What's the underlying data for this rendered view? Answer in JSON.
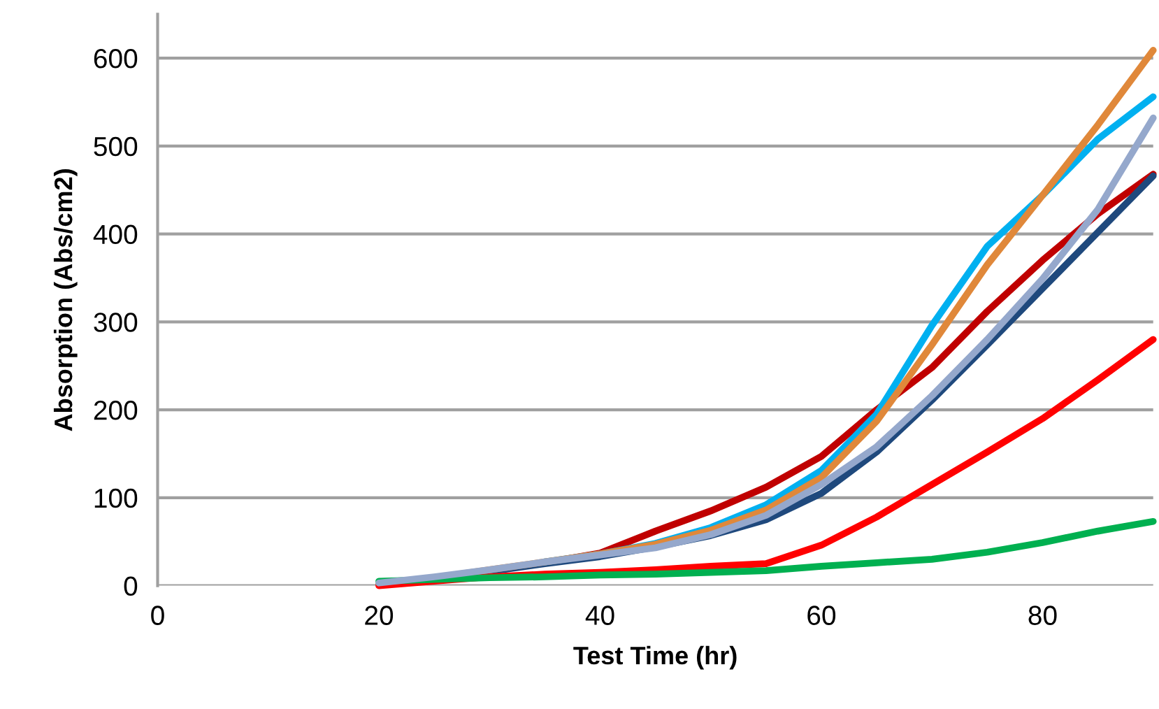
{
  "chart_data": {
    "type": "line",
    "xlabel": "Test Time (hr)",
    "ylabel": "Absorption (Abs/cm2)",
    "x": [
      20,
      25,
      30,
      35,
      40,
      45,
      50,
      55,
      60,
      65,
      70,
      75,
      80,
      85,
      90
    ],
    "series": [
      {
        "color": "#c00000",
        "values": [
          2,
          8,
          17,
          26,
          37,
          62,
          85,
          112,
          147,
          200,
          248,
          312,
          370,
          423,
          468
        ]
      },
      {
        "color": "#1f497d",
        "values": [
          2,
          8,
          16,
          25,
          33,
          44,
          57,
          75,
          105,
          152,
          211,
          274,
          338,
          402,
          466
        ]
      },
      {
        "color": "#00b0f0",
        "values": [
          null,
          null,
          null,
          27,
          36,
          48,
          66,
          92,
          131,
          195,
          296,
          386,
          444,
          508,
          556
        ]
      },
      {
        "color": "#e0883a",
        "values": [
          2,
          9,
          18,
          27,
          36,
          47,
          63,
          86,
          123,
          187,
          274,
          365,
          444,
          524,
          609
        ]
      },
      {
        "color": "#ff0000",
        "values": [
          0,
          5,
          10,
          13,
          15,
          18,
          22,
          25,
          46,
          78,
          115,
          152,
          190,
          234,
          280
        ]
      },
      {
        "color": "#00b050",
        "values": [
          5,
          7,
          9,
          10,
          12,
          13,
          15,
          17,
          22,
          26,
          30,
          38,
          49,
          62,
          73
        ]
      },
      {
        "color": "#95a8cc",
        "values": [
          3,
          10,
          18,
          27,
          35,
          43,
          58,
          80,
          115,
          158,
          216,
          280,
          349,
          428,
          532
        ]
      }
    ],
    "xlim": [
      0,
      90
    ],
    "ylim": [
      0,
      650
    ],
    "xticks": [
      0,
      20,
      40,
      60,
      80
    ],
    "yticks": [
      0,
      100,
      200,
      300,
      400,
      500,
      600
    ],
    "grid": "y",
    "legend": false,
    "marker": "none",
    "line_style": "solid"
  }
}
